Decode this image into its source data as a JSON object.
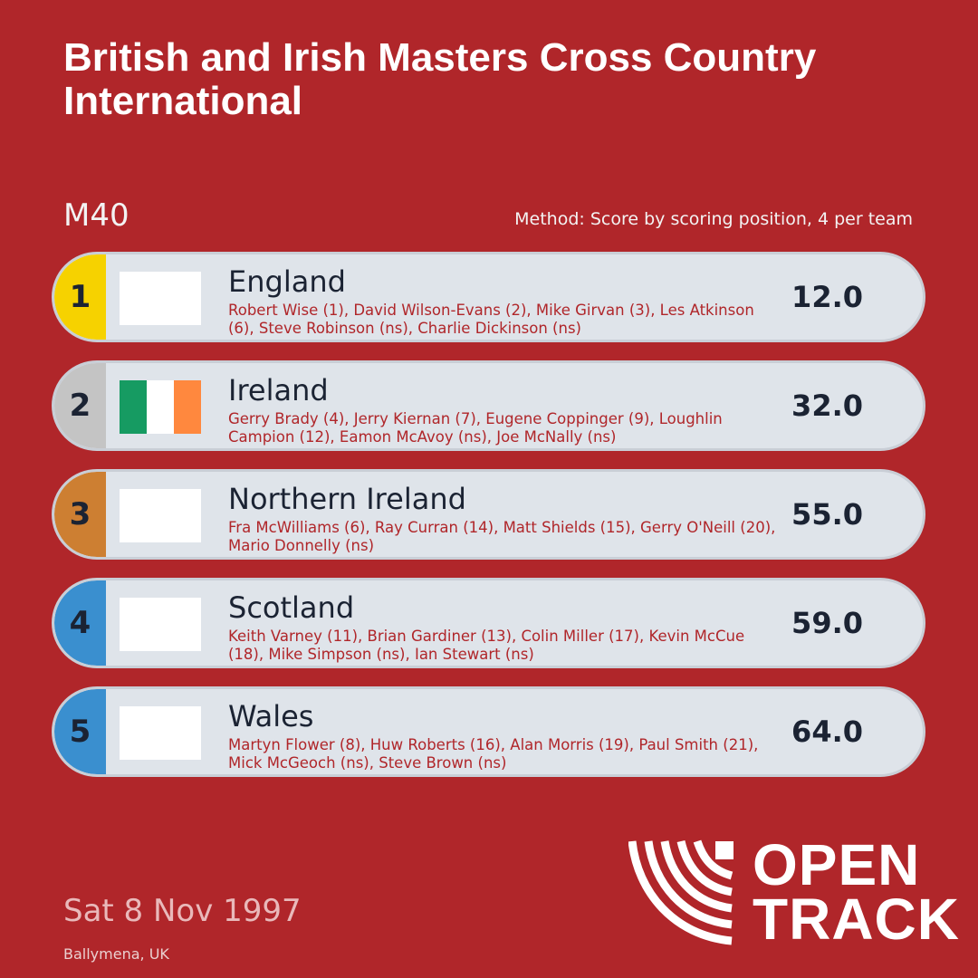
{
  "title": "British and Irish Masters Cross Country International",
  "category": "M40",
  "method": "Method: Score by scoring position, 4 per team",
  "results": [
    {
      "rank": "1",
      "rank_color": "#f6d200",
      "team": "England",
      "flag": "blank",
      "members": "Robert Wise (1), David Wilson-Evans (2), Mike Girvan (3), Les Atkinson (6), Steve Robinson (ns), Charlie Dickinson (ns)",
      "score": "12.0"
    },
    {
      "rank": "2",
      "rank_color": "#c4c4c4",
      "team": "Ireland",
      "flag": "ireland",
      "members": "Gerry Brady (4), Jerry Kiernan (7), Eugene Coppinger (9), Loughlin Campion (12), Eamon McAvoy (ns), Joe McNally (ns)",
      "score": "32.0"
    },
    {
      "rank": "3",
      "rank_color": "#cd7f32",
      "team": "Northern Ireland",
      "flag": "blank",
      "members": "Fra McWilliams (6), Ray Curran (14), Matt Shields (15), Gerry O'Neill (20), Mario Donnelly (ns)",
      "score": "55.0"
    },
    {
      "rank": "4",
      "rank_color": "#3a8fcf",
      "team": "Scotland",
      "flag": "blank",
      "members": "Keith Varney (11), Brian Gardiner (13), Colin Miller (17), Kevin McCue (18), Mike Simpson (ns), Ian Stewart (ns)",
      "score": "59.0"
    },
    {
      "rank": "5",
      "rank_color": "#3a8fcf",
      "team": "Wales",
      "flag": "blank",
      "members": "Martyn Flower (8), Huw Roberts (16), Alan Morris (19), Paul Smith (21), Mick McGeoch (ns), Steve Brown (ns)",
      "score": "64.0"
    }
  ],
  "flag_colors": {
    "ireland": [
      "#169b62",
      "#ffffff",
      "#ff883e"
    ]
  },
  "date": "Sat 8 Nov 1997",
  "venue": "Ballymena, UK",
  "logo": {
    "line1": "OPEN",
    "line2": "TRACK",
    "icon": "open-track-logo-icon"
  },
  "colors": {
    "background": "#b0262a",
    "row": "#dfe4ea",
    "text_dark": "#1b2333"
  }
}
